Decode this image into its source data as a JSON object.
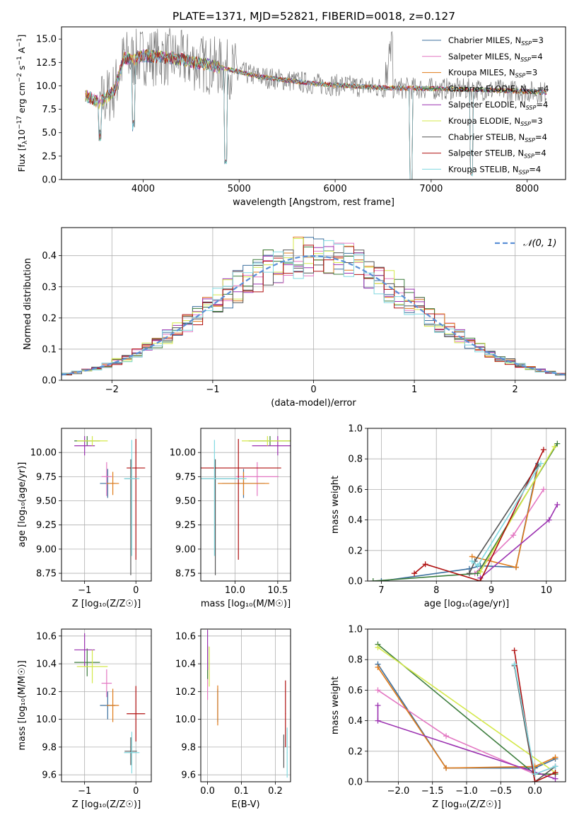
{
  "series": [
    {
      "name": "Chabrier MILES",
      "nssp": "3",
      "color": "#3b6f9e"
    },
    {
      "name": "Salpeter MILES",
      "nssp": "4",
      "color": "#e377c2"
    },
    {
      "name": "Kroupa MILES",
      "nssp": "3",
      "color": "#e07b1a"
    },
    {
      "name": "Chabrier ELODIE",
      "nssp": "4",
      "color": "#3d7d3d"
    },
    {
      "name": "Salpeter ELODIE",
      "nssp": "4",
      "color": "#9b30b0"
    },
    {
      "name": "Kroupa ELODIE",
      "nssp": "3",
      "color": "#d4e84a"
    },
    {
      "name": "Chabrier STELIB",
      "nssp": "4",
      "color": "#555555"
    },
    {
      "name": "Salpeter STELIB",
      "nssp": "4",
      "color": "#b01010"
    },
    {
      "name": "Kroupa STELIB",
      "nssp": "4",
      "color": "#80d8e0"
    }
  ],
  "chart_data": [
    {
      "type": "line",
      "title": "PLATE=1371, MJD=52821, FIBERID=0018, z=0.127",
      "xlabel": "wavelength [Angstrom, rest frame]",
      "ylabel": "Flux [f",
      "ylabel_sub": "λ",
      "ylabel_tail": "10",
      "ylabel_exp": "−17",
      "ylabel_rest": " erg cm",
      "ylabel_exp2": "−2",
      "ylabel_rest2": " s",
      "ylabel_exp3": "−1",
      "ylabel_rest3": " A",
      "ylabel_exp4": "−1",
      "ylabel_end": "]",
      "xlim": [
        3150,
        8400
      ],
      "ylim": [
        0,
        16.3
      ],
      "xticks": [
        4000,
        5000,
        6000,
        7000,
        8000
      ],
      "yticks": [
        "0.0",
        "2.5",
        "5.0",
        "7.5",
        "10.0",
        "12.5",
        "15.0"
      ],
      "legend_placement": "upper-right",
      "legend_label_suffix": ", N",
      "legend_label_sub": "SSP",
      "spectrum_anchor": {
        "x": [
          3400,
          3550,
          3700,
          3800,
          3900,
          4000,
          4300,
          4800,
          5200,
          5800,
          6500,
          7000,
          7500,
          8000,
          8200
        ],
        "y": [
          9.0,
          8.2,
          9.5,
          13.0,
          12.8,
          13.2,
          13.0,
          12.0,
          11.0,
          10.2,
          9.8,
          9.7,
          9.6,
          9.4,
          9.3
        ]
      }
    },
    {
      "type": "histogram",
      "xlabel": "(data-model)/error",
      "ylabel": "Normed distribution",
      "xlim": [
        -2.5,
        2.5
      ],
      "ylim": [
        0,
        0.49
      ],
      "xticks": [
        "−2",
        "−1",
        "0",
        "1",
        "2"
      ],
      "yticks": [
        "0.0",
        "0.1",
        "0.2",
        "0.3",
        "0.4"
      ],
      "grid": true,
      "legend_label": "𝒩(0, 1)",
      "legend_placement": "upper-right",
      "bin_width": 0.1
    },
    {
      "type": "scatter",
      "xlabel": "Z [log₁₀(Z/Z☉)]",
      "ylabel": "age  [log₁₀(age/yr)]",
      "xlim": [
        -1.45,
        0.3
      ],
      "ylim": [
        8.67,
        10.25
      ],
      "xticks": [
        "−1",
        "0"
      ],
      "yticks": [
        "8.75",
        "9.00",
        "9.25",
        "9.50",
        "9.75",
        "10.00"
      ],
      "grid": true
    },
    {
      "type": "scatter",
      "xlabel": "mass [log₁₀(M/M☉)]",
      "ylabel": "",
      "xlim": [
        9.6,
        10.65
      ],
      "ylim": [
        8.67,
        10.25
      ],
      "xticks": [
        "10.0",
        "10.5"
      ],
      "yticks": [
        "8.75",
        "9.00",
        "9.25",
        "9.50",
        "9.75",
        "10.00"
      ],
      "grid": true
    },
    {
      "type": "line",
      "xlabel": "age  [log₁₀(age/yr)]",
      "ylabel": "mass weight",
      "xlim": [
        6.75,
        10.35
      ],
      "ylim": [
        0,
        1.0
      ],
      "xticks": [
        "7",
        "8",
        "9",
        "10"
      ],
      "yticks": [
        "0.0",
        "0.2",
        "0.4",
        "0.6",
        "0.8",
        "1.0"
      ],
      "grid": true
    },
    {
      "type": "scatter",
      "xlabel": "Z [log₁₀(Z/Z☉)]",
      "ylabel": "mass [log₁₀(M/M☉)]",
      "xlim": [
        -1.45,
        0.3
      ],
      "ylim": [
        9.55,
        10.65
      ],
      "xticks": [
        "−1",
        "0"
      ],
      "yticks": [
        "9.6",
        "9.8",
        "10.0",
        "10.2",
        "10.4",
        "10.6"
      ],
      "grid": true
    },
    {
      "type": "scatter",
      "xlabel": "E(B-V)",
      "ylabel": "",
      "xlim": [
        -0.02,
        0.245
      ],
      "ylim": [
        9.55,
        10.65
      ],
      "xticks": [
        "0.0",
        "0.1",
        "0.2"
      ],
      "yticks": [
        "9.6",
        "9.8",
        "10.0",
        "10.2",
        "10.4",
        "10.6"
      ],
      "grid": true
    },
    {
      "type": "line",
      "xlabel": "Z [log₁₀(Z/Z☉)]",
      "ylabel": "mass weight",
      "xlim": [
        -2.45,
        0.45
      ],
      "ylim": [
        0,
        1.0
      ],
      "xticks": [
        "−2.0",
        "−1.5",
        "−1.0",
        "−0.5",
        "0.0"
      ],
      "yticks": [
        "0.0",
        "0.2",
        "0.4",
        "0.6",
        "0.8",
        "1.0"
      ],
      "grid": true
    }
  ],
  "fits": [
    {
      "Z": -0.55,
      "Zerr": 0.15,
      "age": 9.68,
      "ageErr": [
        0.15,
        0.15
      ],
      "mass": 10.1,
      "massErr": 0.1,
      "ebv": 0.03,
      "ebvErr": 0.05,
      "w_age": [
        [
          7.0,
          0.0
        ],
        [
          8.6,
          0.08
        ],
        [
          8.8,
          0.1
        ],
        [
          9.45,
          0.09
        ],
        [
          9.85,
          0.77
        ]
      ],
      "w_z": [
        [
          -2.3,
          0.77
        ],
        [
          -1.3,
          0.09
        ],
        [
          0.0,
          0.09
        ],
        [
          0.3,
          0.15
        ]
      ]
    },
    {
      "Z": -0.57,
      "Zerr": 0.1,
      "age": 9.75,
      "ageErr": [
        0.2,
        0.15
      ],
      "mass": 10.26,
      "massErr": 0.1,
      "ebv": 0.0,
      "ebvErr": 0.05,
      "w_age": [
        [
          8.7,
          0.05
        ],
        [
          9.4,
          0.3
        ],
        [
          9.95,
          0.6
        ]
      ],
      "w_z": [
        [
          -2.3,
          0.6
        ],
        [
          -1.3,
          0.3
        ],
        [
          0.0,
          0.05
        ],
        [
          0.3,
          0.1
        ]
      ]
    },
    {
      "Z": -0.45,
      "Zerr": 0.12,
      "age": 9.68,
      "ageErr": [
        0.12,
        0.12
      ],
      "mass": 10.1,
      "massErr": 0.12,
      "ebv": 0.03,
      "ebvErr": 0.05,
      "w_age": [
        [
          8.65,
          0.16
        ],
        [
          9.45,
          0.09
        ],
        [
          9.85,
          0.75
        ]
      ],
      "w_z": [
        [
          -2.3,
          0.75
        ],
        [
          -1.3,
          0.09
        ],
        [
          0.0,
          0.1
        ],
        [
          0.3,
          0.16
        ]
      ]
    },
    {
      "Z": -0.95,
      "Zerr": 0.25,
      "age": 10.12,
      "ageErr": [
        0.05,
        0.05
      ],
      "mass": 10.41,
      "massErr": 0.1,
      "ebv": 0.0,
      "ebvErr": 0.03,
      "w_age": [
        [
          6.85,
          0.0
        ],
        [
          8.75,
          0.05
        ],
        [
          10.2,
          0.9
        ]
      ],
      "w_z": [
        [
          -2.3,
          0.9
        ],
        [
          0.0,
          0.05
        ],
        [
          0.3,
          0.05
        ]
      ]
    },
    {
      "Z": -1.0,
      "Zerr": 0.2,
      "age": 10.07,
      "ageErr": [
        0.1,
        0.1
      ],
      "mass": 10.5,
      "massErr": 0.12,
      "ebv": 0.0,
      "ebvErr": 0.02,
      "w_age": [
        [
          8.8,
          0.02
        ],
        [
          10.05,
          0.4
        ],
        [
          10.2,
          0.5
        ]
      ],
      "w_z": [
        [
          -2.3,
          0.5
        ],
        [
          -2.3,
          0.4
        ],
        [
          0.3,
          0.02
        ]
      ]
    },
    {
      "Z": -0.85,
      "Zerr": 0.3,
      "age": 10.12,
      "ageErr": [
        0.05,
        0.05
      ],
      "mass": 10.38,
      "massErr": 0.12,
      "ebv": 0.005,
      "ebvErr": 0.02,
      "w_age": [
        [
          8.8,
          0.06
        ],
        [
          10.15,
          0.88
        ]
      ],
      "w_z": [
        [
          -2.3,
          0.88
        ],
        [
          0.3,
          0.06
        ]
      ]
    },
    {
      "Z": -0.1,
      "Zerr": 0.12,
      "age": 9.73,
      "ageErr": [
        1.0,
        0.2
      ],
      "mass": 9.77,
      "massErr": 0.1,
      "ebv": 0.225,
      "ebvErr": 0.12,
      "w_age": [
        [
          8.6,
          0.05
        ],
        [
          8.7,
          0.13
        ],
        [
          9.85,
          0.76
        ]
      ],
      "w_z": [
        [
          -0.3,
          0.76
        ],
        [
          0.0,
          0.0
        ],
        [
          0.3,
          0.1
        ]
      ]
    },
    {
      "Z": 0.0,
      "Zerr": 0.18,
      "age": 9.84,
      "ageErr": [
        0.95,
        0.3
      ],
      "mass": 10.04,
      "massErr": 0.2,
      "ebv": 0.23,
      "ebvErr": 0.1,
      "w_age": [
        [
          7.6,
          0.05
        ],
        [
          7.8,
          0.11
        ],
        [
          8.8,
          0.0
        ],
        [
          9.95,
          0.86
        ]
      ],
      "w_z": [
        [
          -0.3,
          0.86
        ],
        [
          0.0,
          0.0
        ],
        [
          0.3,
          0.06
        ]
      ]
    },
    {
      "Z": -0.08,
      "Zerr": 0.15,
      "age": 9.73,
      "ageErr": [
        0.8,
        0.4
      ],
      "mass": 9.76,
      "massErr": 0.15,
      "ebv": 0.235,
      "ebvErr": 0.12,
      "w_age": [
        [
          8.65,
          0.13
        ],
        [
          8.75,
          0.1
        ],
        [
          9.9,
          0.77
        ]
      ],
      "w_z": [
        [
          -0.3,
          0.77
        ],
        [
          0.0,
          0.05
        ],
        [
          0.3,
          0.1
        ]
      ]
    }
  ]
}
